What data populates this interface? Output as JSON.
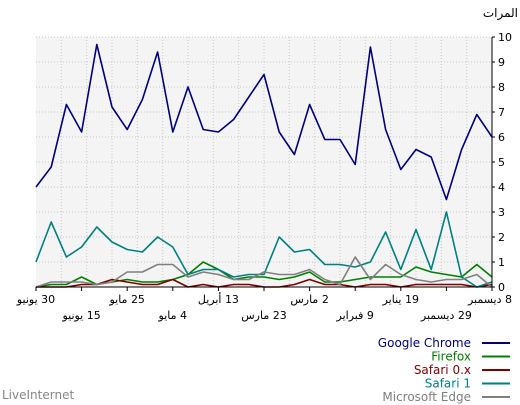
{
  "chart_data": {
    "type": "line",
    "ylabel": "المرات",
    "ylim": [
      0,
      10
    ],
    "y_ticks": [
      0,
      1,
      2,
      3,
      4,
      5,
      6,
      7,
      8,
      9,
      10
    ],
    "grid": true,
    "legend_position": "bottom-right",
    "x_direction": "right-to-left",
    "x_ticks": [
      {
        "label": "8 ديسمبر",
        "row": 1
      },
      {
        "label": "29 ديسمبر",
        "row": 2
      },
      {
        "label": "19 يناير",
        "row": 1
      },
      {
        "label": "9 فبراير",
        "row": 2
      },
      {
        "label": "2 مارس",
        "row": 1
      },
      {
        "label": "23 مارس",
        "row": 2
      },
      {
        "label": "13 أبريل",
        "row": 1
      },
      {
        "label": "4 مايو",
        "row": 2
      },
      {
        "label": "25 مايو",
        "row": 1
      },
      {
        "label": "15 يونيو",
        "row": 2
      },
      {
        "label": "30 يونيو",
        "row": 1
      }
    ],
    "series": [
      {
        "name": "Google Chrome",
        "color": "#000080",
        "values": [
          6.0,
          6.9,
          5.5,
          3.5,
          5.2,
          5.5,
          4.7,
          6.3,
          9.6,
          4.9,
          5.9,
          5.9,
          7.3,
          5.3,
          6.2,
          8.5,
          7.6,
          6.7,
          6.2,
          6.3,
          8.0,
          6.2,
          9.4,
          7.5,
          6.3,
          7.2,
          9.7,
          6.2,
          7.3,
          4.8,
          4.0
        ]
      },
      {
        "name": "Firefox",
        "color": "#008000",
        "values": [
          0.4,
          0.9,
          0.4,
          0.5,
          0.6,
          0.8,
          0.4,
          0.4,
          0.4,
          0.3,
          0.2,
          0.2,
          0.6,
          0.4,
          0.3,
          0.4,
          0.4,
          0.3,
          0.7,
          1.0,
          0.5,
          0.3,
          0.2,
          0.2,
          0.3,
          0.2,
          0.1,
          0.4,
          0.1,
          0.1,
          0.0
        ]
      },
      {
        "name": "Safari 0.x",
        "color": "#800000",
        "values": [
          0.1,
          0.0,
          0.1,
          0.1,
          0.1,
          0.1,
          0.0,
          0.1,
          0.1,
          0.0,
          0.1,
          0.1,
          0.3,
          0.1,
          0.0,
          0.0,
          0.1,
          0.1,
          0.0,
          0.1,
          0.0,
          0.3,
          0.1,
          0.1,
          0.2,
          0.3,
          0.1,
          0.1,
          0.0,
          0.0,
          0.0
        ]
      },
      {
        "name": "Safari 1",
        "color": "#008080",
        "values": [
          0.2,
          0.0,
          0.4,
          3.0,
          0.7,
          2.3,
          0.7,
          2.2,
          1.0,
          0.8,
          0.9,
          0.9,
          1.5,
          1.4,
          2.0,
          0.5,
          0.5,
          0.4,
          0.7,
          0.7,
          0.5,
          1.6,
          2.0,
          1.4,
          1.5,
          1.8,
          2.4,
          1.6,
          1.2,
          2.6,
          1.0
        ]
      },
      {
        "name": "Microsoft Edge",
        "color": "#808080",
        "values": [
          0.0,
          0.5,
          0.3,
          0.3,
          0.2,
          0.3,
          0.5,
          0.9,
          0.3,
          1.2,
          0.1,
          0.3,
          0.7,
          0.5,
          0.5,
          0.6,
          0.3,
          0.3,
          0.5,
          0.6,
          0.4,
          0.9,
          0.9,
          0.6,
          0.6,
          0.2,
          0.1,
          0.2,
          0.2,
          0.2,
          0.0
        ]
      }
    ]
  },
  "watermark": "LiveInternet"
}
